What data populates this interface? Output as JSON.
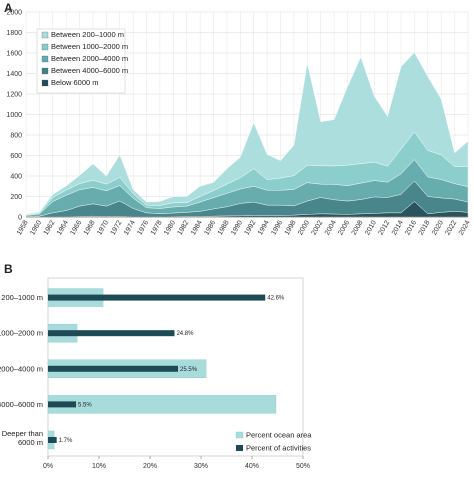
{
  "panel_a_label": "A",
  "panel_b_label": "B",
  "colors": {
    "between_200_1000": "#a9dcdc",
    "between_1000_2000": "#86cbc9",
    "between_2000_4000": "#5fa9aa",
    "between_4000_6000": "#3e7f85",
    "below_6000": "#1f4b54",
    "ocean_area": "#a8dcdc",
    "activities": "#1d4a55"
  },
  "chart_data": [
    {
      "type": "area",
      "stacked": true,
      "x": [
        "1958",
        "1960",
        "1962",
        "1964",
        "1966",
        "1968",
        "1970",
        "1972",
        "1974",
        "1976",
        "1978",
        "1980",
        "1982",
        "1984",
        "1986",
        "1988",
        "1990",
        "1992",
        "1994",
        "1996",
        "1998",
        "2000",
        "2002",
        "2004",
        "2006",
        "2008",
        "2010",
        "2012",
        "2014",
        "2016",
        "2018",
        "2020",
        "2022",
        "2024"
      ],
      "ylim": [
        0,
        2000
      ],
      "yticks": [
        0,
        200,
        400,
        600,
        800,
        1000,
        1200,
        1400,
        1600,
        1800,
        2000
      ],
      "grid": true,
      "legend_position": "top-left",
      "series": [
        {
          "name": "Below 6000 m",
          "values": [
            0,
            0,
            0,
            2,
            5,
            8,
            5,
            6,
            2,
            0,
            2,
            3,
            5,
            5,
            8,
            10,
            12,
            15,
            15,
            15,
            18,
            25,
            30,
            28,
            25,
            30,
            35,
            40,
            40,
            150,
            30,
            45,
            55,
            45
          ]
        },
        {
          "name": "Between 4000–6000 m",
          "values": [
            5,
            8,
            40,
            60,
            100,
            120,
            100,
            150,
            80,
            40,
            30,
            35,
            40,
            50,
            70,
            90,
            120,
            130,
            100,
            100,
            90,
            130,
            160,
            140,
            130,
            140,
            160,
            150,
            180,
            200,
            170,
            140,
            120,
            100
          ]
        },
        {
          "name": "Between 2000–4000 m",
          "values": [
            10,
            20,
            110,
            150,
            160,
            160,
            150,
            150,
            100,
            50,
            50,
            60,
            60,
            90,
            110,
            130,
            140,
            155,
            145,
            145,
            160,
            180,
            130,
            150,
            150,
            160,
            160,
            150,
            200,
            210,
            190,
            180,
            150,
            150
          ]
        },
        {
          "name": "Between 1000–2000 m",
          "values": [
            5,
            10,
            40,
            50,
            60,
            70,
            65,
            80,
            45,
            25,
            30,
            40,
            35,
            55,
            70,
            90,
            110,
            170,
            105,
            120,
            135,
            170,
            180,
            180,
            200,
            190,
            180,
            155,
            240,
            270,
            260,
            240,
            165,
            200
          ]
        },
        {
          "name": "Between 200–1000 m",
          "values": [
            10,
            10,
            30,
            40,
            80,
            160,
            80,
            220,
            40,
            30,
            40,
            60,
            60,
            100,
            80,
            150,
            200,
            450,
            245,
            170,
            297,
            995,
            430,
            452,
            765,
            1040,
            645,
            485,
            805,
            775,
            720,
            545,
            135,
            245
          ]
        }
      ]
    },
    {
      "type": "bar",
      "orientation": "horizontal",
      "categories": [
        "200–1000 m",
        "1000–2000 m",
        "2000–4000 m",
        "4000–6000 m",
        "Deeper than 6000 m"
      ],
      "series": [
        {
          "name": "Percent ocean area",
          "values": [
            10.8,
            5.7,
            31.0,
            44.7,
            1.2
          ]
        },
        {
          "name": "Percent of activities",
          "values": [
            42.6,
            24.8,
            25.5,
            5.5,
            1.7
          ]
        }
      ],
      "data_labels": [
        "42.6%",
        "24.8%",
        "25.5%",
        "5.5%",
        "1.7%"
      ],
      "xlim": [
        0,
        50
      ],
      "xticks": [
        "0%",
        "10%",
        "20%",
        "30%",
        "40%",
        "50%"
      ],
      "legend_position": "bottom-right"
    }
  ]
}
